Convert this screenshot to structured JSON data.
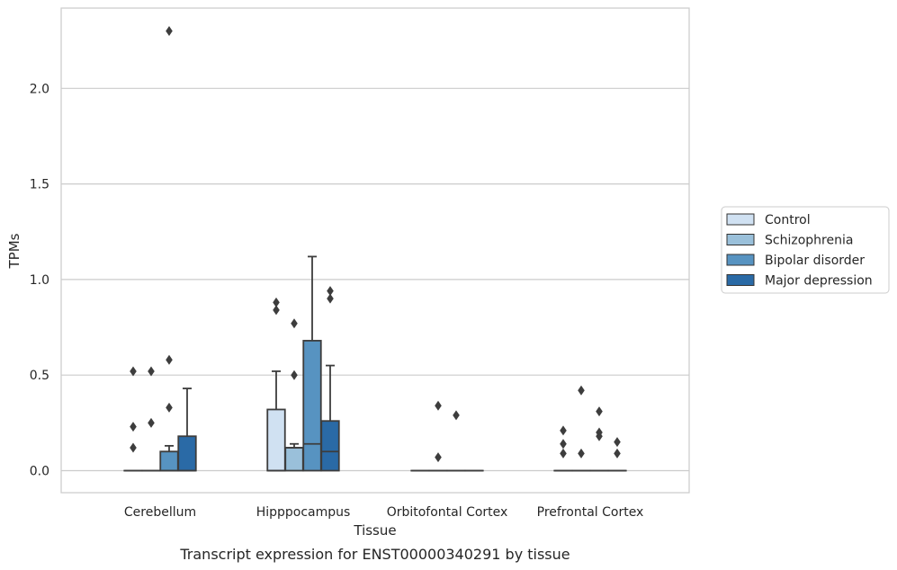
{
  "caption": "Transcript expression for ENST00000340291 by tissue",
  "chart_data": {
    "type": "box",
    "title": "",
    "xlabel": "Tissue",
    "ylabel": "TPMs",
    "ylim": [
      -0.11,
      2.42
    ],
    "yticks": [
      0.0,
      0.5,
      1.0,
      1.5,
      2.0
    ],
    "ytick_labels": [
      "0.0",
      "0.5",
      "1.0",
      "1.5",
      "2.0"
    ],
    "grid": "horizontal",
    "legend_position": "right",
    "categories": [
      "Cerebellum",
      "Hipppocampus",
      "Orbitofontal Cortex",
      "Prefrontal Cortex"
    ],
    "series": [
      {
        "name": "Control",
        "color": "#d0e1f2",
        "boxes": [
          {
            "q1": 0,
            "median": 0,
            "q3": 0,
            "whislo": 0,
            "whishi": 0,
            "fliers": [
              0.12,
              0.23,
              0.52
            ]
          },
          {
            "q1": 0,
            "median": 0,
            "q3": 0.32,
            "whislo": 0,
            "whishi": 0.52,
            "fliers": [
              0.84,
              0.88
            ]
          },
          {
            "q1": 0,
            "median": 0,
            "q3": 0,
            "whislo": 0,
            "whishi": 0,
            "fliers": []
          },
          {
            "q1": 0,
            "median": 0,
            "q3": 0,
            "whislo": 0,
            "whishi": 0,
            "fliers": [
              0.09,
              0.14,
              0.21
            ]
          }
        ]
      },
      {
        "name": "Schizophrenia",
        "color": "#9ac0da",
        "boxes": [
          {
            "q1": 0,
            "median": 0,
            "q3": 0,
            "whislo": 0,
            "whishi": 0,
            "fliers": [
              0.25,
              0.52
            ]
          },
          {
            "q1": 0,
            "median": 0.12,
            "q3": 0.12,
            "whislo": 0,
            "whishi": 0.14,
            "fliers": [
              0.5,
              0.77
            ]
          },
          {
            "q1": 0,
            "median": 0,
            "q3": 0,
            "whislo": 0,
            "whishi": 0,
            "fliers": [
              0.07,
              0.34
            ]
          },
          {
            "q1": 0,
            "median": 0,
            "q3": 0,
            "whislo": 0,
            "whishi": 0,
            "fliers": [
              0.09,
              0.42
            ]
          }
        ]
      },
      {
        "name": "Bipolar disorder",
        "color": "#5793c1",
        "boxes": [
          {
            "q1": 0,
            "median": 0,
            "q3": 0.1,
            "whislo": 0,
            "whishi": 0.13,
            "fliers": [
              0.33,
              0.58,
              2.3
            ]
          },
          {
            "q1": 0,
            "median": 0.14,
            "q3": 0.68,
            "whislo": 0,
            "whishi": 1.12,
            "fliers": []
          },
          {
            "q1": 0,
            "median": 0,
            "q3": 0,
            "whislo": 0,
            "whishi": 0,
            "fliers": [
              0.29
            ]
          },
          {
            "q1": 0,
            "median": 0,
            "q3": 0,
            "whislo": 0,
            "whishi": 0,
            "fliers": [
              0.18,
              0.2,
              0.31
            ]
          }
        ]
      },
      {
        "name": "Major depression",
        "color": "#2a6aa6",
        "boxes": [
          {
            "q1": 0,
            "median": 0,
            "q3": 0.18,
            "whislo": 0,
            "whishi": 0.43,
            "fliers": []
          },
          {
            "q1": 0,
            "median": 0.1,
            "q3": 0.26,
            "whislo": 0,
            "whishi": 0.55,
            "fliers": [
              0.9,
              0.94
            ]
          },
          {
            "q1": 0,
            "median": 0,
            "q3": 0,
            "whislo": 0,
            "whishi": 0,
            "fliers": []
          },
          {
            "q1": 0,
            "median": 0,
            "q3": 0,
            "whislo": 0,
            "whishi": 0,
            "fliers": [
              0.09,
              0.15
            ]
          }
        ]
      }
    ]
  }
}
